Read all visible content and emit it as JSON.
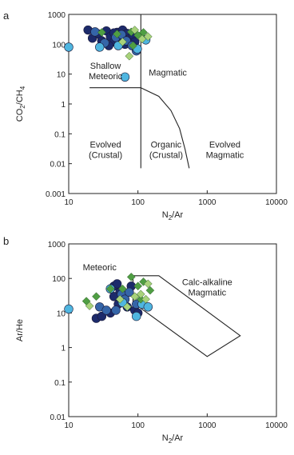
{
  "chart_data": [
    {
      "panel_letter": "a",
      "type": "scatter",
      "xlabel": "N2/Ar",
      "ylabel": "CO2/CH4",
      "x_scale": "log",
      "y_scale": "log",
      "xlim": [
        10,
        10000
      ],
      "ylim": [
        0.001,
        1000
      ],
      "x_ticks": [
        "10",
        "100",
        "1000",
        "10000"
      ],
      "y_ticks": [
        "0.001",
        "0.01",
        "0.1",
        "1",
        "10",
        "100",
        "1000"
      ],
      "region_labels": [
        {
          "id": "shallow",
          "lines": [
            "Shallow",
            "Meteoric"
          ],
          "x": 34,
          "y": 15
        },
        {
          "id": "magmatic",
          "lines": [
            "Magmatic"
          ],
          "x": 270,
          "y": 9
        },
        {
          "id": "evolved-crustal",
          "lines": [
            "Evolved",
            "(Crustal)"
          ],
          "x": 34,
          "y": 0.035
        },
        {
          "id": "organic-crustal",
          "lines": [
            "Organic",
            "(Crustal)"
          ],
          "x": 255,
          "y": 0.035
        },
        {
          "id": "evolved-magmatic",
          "lines": [
            "Evolved",
            "Magmatic"
          ],
          "x": 1800,
          "y": 0.035
        }
      ],
      "boundaries": [
        {
          "points": [
            [
              110,
              1000
            ],
            [
              110,
              0.007
            ]
          ]
        },
        {
          "points": [
            [
              20,
              3.5
            ],
            [
              110,
              3.5
            ]
          ]
        },
        {
          "points": [
            [
              110,
              3.5
            ],
            [
              200,
              1.8
            ],
            [
              300,
              0.6
            ],
            [
              400,
              0.15
            ],
            [
              480,
              0.03
            ],
            [
              550,
              0.007
            ]
          ]
        }
      ],
      "series": [
        {
          "marker": "circle",
          "color": "#1c2a6b",
          "points": [
            [
              19,
              300
            ],
            [
              22,
              160
            ],
            [
              27,
              220
            ],
            [
              30,
              130
            ],
            [
              35,
              280
            ],
            [
              40,
              180
            ],
            [
              45,
              120
            ],
            [
              50,
              250
            ],
            [
              55,
              160
            ],
            [
              60,
              300
            ],
            [
              65,
              100
            ],
            [
              70,
              230
            ],
            [
              75,
              150
            ],
            [
              85,
              200
            ],
            [
              90,
              120
            ],
            [
              45,
              240
            ],
            [
              38,
              90
            ]
          ]
        },
        {
          "marker": "circle",
          "color": "#3565a8",
          "points": [
            [
              24,
              260
            ],
            [
              33,
              110
            ],
            [
              48,
              170
            ],
            [
              58,
              210
            ],
            [
              68,
              130
            ],
            [
              82,
              90
            ],
            [
              95,
              60
            ]
          ]
        },
        {
          "marker": "circle",
          "color": "#4fb6e0",
          "points": [
            [
              10,
              80
            ],
            [
              28,
              80
            ],
            [
              52,
              90
            ],
            [
              65,
              8
            ],
            [
              130,
              140
            ],
            [
              98,
              70
            ]
          ]
        },
        {
          "marker": "diamond",
          "color": "#4f9e43",
          "points": [
            [
              30,
              250
            ],
            [
              50,
              220
            ],
            [
              80,
              260
            ],
            [
              100,
              200
            ],
            [
              120,
              250
            ],
            [
              85,
              90
            ]
          ]
        },
        {
          "marker": "diamond",
          "color": "#a8d27a",
          "points": [
            [
              90,
              300
            ],
            [
              115,
              150
            ],
            [
              140,
              180
            ],
            [
              75,
              40
            ],
            [
              60,
              120
            ]
          ]
        }
      ]
    },
    {
      "panel_letter": "b",
      "type": "scatter",
      "xlabel": "N2/Ar",
      "ylabel": "Ar/He",
      "x_scale": "log",
      "y_scale": "log",
      "xlim": [
        10,
        10000
      ],
      "ylim": [
        0.01,
        1000
      ],
      "x_ticks": [
        "10",
        "100",
        "1000",
        "10000"
      ],
      "y_ticks": [
        "0.01",
        "0.1",
        "1",
        "10",
        "100",
        "1000"
      ],
      "region_labels": [
        {
          "id": "meteoric",
          "lines": [
            "Meteoric"
          ],
          "x": 28,
          "y": 170
        },
        {
          "id": "calc-alkaline",
          "lines": [
            "Calc-alkaline",
            "Magmatic"
          ],
          "x": 1000,
          "y": 65
        }
      ],
      "boundaries": [
        {
          "points": [
            [
              85,
              120
            ],
            [
              200,
              120
            ],
            [
              3000,
              2.2
            ],
            [
              1000,
              0.55
            ],
            [
              85,
              20
            ],
            [
              85,
              120
            ]
          ]
        }
      ],
      "series": [
        {
          "marker": "circle",
          "color": "#1c2a6b",
          "points": [
            [
              25,
              7
            ],
            [
              30,
              8
            ],
            [
              40,
              10
            ],
            [
              45,
              60
            ],
            [
              50,
              70
            ],
            [
              55,
              40
            ],
            [
              60,
              20
            ],
            [
              70,
              15
            ],
            [
              80,
              60
            ],
            [
              90,
              12
            ],
            [
              100,
              10
            ],
            [
              45,
              30
            ],
            [
              52,
              18
            ]
          ]
        },
        {
          "marker": "circle",
          "color": "#3565a8",
          "points": [
            [
              28,
              15
            ],
            [
              35,
              12
            ],
            [
              48,
              12
            ],
            [
              58,
              35
            ],
            [
              65,
              25
            ],
            [
              75,
              40
            ],
            [
              95,
              18
            ]
          ]
        },
        {
          "marker": "circle",
          "color": "#4fb6e0",
          "points": [
            [
              10,
              13
            ],
            [
              40,
              50
            ],
            [
              60,
              20
            ],
            [
              115,
              18
            ],
            [
              140,
              15
            ],
            [
              95,
              8
            ]
          ]
        },
        {
          "marker": "diamond",
          "color": "#4f9e43",
          "points": [
            [
              18,
              22
            ],
            [
              25,
              30
            ],
            [
              40,
              50
            ],
            [
              60,
              50
            ],
            [
              80,
              110
            ],
            [
              100,
              60
            ],
            [
              120,
              80
            ],
            [
              110,
              25
            ],
            [
              150,
              45
            ]
          ]
        },
        {
          "marker": "diamond",
          "color": "#a8d27a",
          "points": [
            [
              20,
              16
            ],
            [
              55,
              25
            ],
            [
              70,
              15
            ],
            [
              90,
              30
            ],
            [
              130,
              25
            ],
            [
              110,
              35
            ],
            [
              140,
              70
            ]
          ]
        }
      ]
    }
  ]
}
